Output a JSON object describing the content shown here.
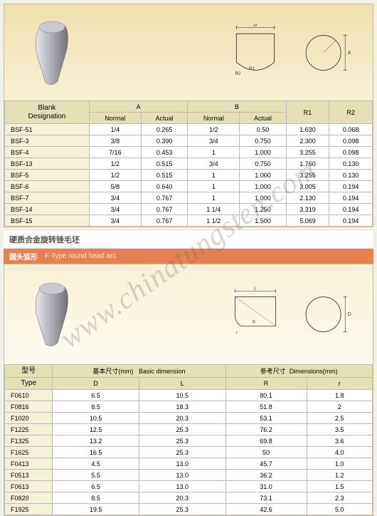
{
  "watermark": "www.chinatungsten.com",
  "table1": {
    "headers": {
      "blank": "Blank\nDesignation",
      "a": "A",
      "b": "B",
      "r1": "R1",
      "r2": "R2",
      "normal": "Normal",
      "actual": "Actual"
    },
    "rows": [
      [
        "BSF-51",
        "1/4",
        "0.265",
        "1/2",
        "0.50",
        "1.630",
        "0.068"
      ],
      [
        "BSF-3",
        "3/8",
        "0.390",
        "3/4",
        "0.750",
        "2.300",
        "0.098"
      ],
      [
        "BSF-4",
        "7/16",
        "0.453",
        "1",
        "1.000",
        "3.255",
        "0.098"
      ],
      [
        "BSF-13",
        "1/2",
        "0.515",
        "3/4",
        "0.750",
        "1.760",
        "0.130"
      ],
      [
        "BSF-5",
        "1/2",
        "0.515",
        "1",
        "1.000",
        "3.255",
        "0.130"
      ],
      [
        "BSF-6",
        "5/8",
        "0.640",
        "1",
        "1.000",
        "3.005",
        "0.194"
      ],
      [
        "BSF-7",
        "3/4",
        "0.767",
        "1",
        "1.000",
        "2.130",
        "0.194"
      ],
      [
        "BSF-14",
        "3/4",
        "0.767",
        "1 1/4",
        "1.250",
        "3.319",
        "0.194"
      ],
      [
        "BSF-15",
        "3/4",
        "0.767",
        "1 1/2",
        "1.500",
        "5.069",
        "0.194"
      ]
    ],
    "diagram_labels": {
      "b": "B",
      "a": "A",
      "r1": "R1",
      "r2": "R2"
    }
  },
  "section2": {
    "title": "硬质合金旋转锉毛坯",
    "subtitle_cn": "圆头弧形",
    "subtitle_en": "F Type round head arc"
  },
  "table2": {
    "headers": {
      "type_cn": "型号",
      "type_en": "Type",
      "basic_cn": "基本尺寸(mm)",
      "basic_en": "Basic dimension",
      "ref_cn": "参考尺寸",
      "ref_en": "Dimensions(mm)",
      "d": "D",
      "l": "L",
      "r_big": "R",
      "r_small": "r"
    },
    "rows": [
      [
        "F0610",
        "6.5",
        "10.5",
        "80.1",
        "1.8"
      ],
      [
        "F0816",
        "8.5",
        "18.3",
        "51.8",
        "2"
      ],
      [
        "F1020",
        "10.5",
        "20.3",
        "53.1",
        "2.5"
      ],
      [
        "F1225",
        "12.5",
        "25.3",
        "76.2",
        "3.5"
      ],
      [
        "F1325",
        "13.2",
        "25.3",
        "69.8",
        "3.6"
      ],
      [
        "F1625",
        "16.5",
        "25.3",
        "50",
        "4.0"
      ],
      [
        "F0413",
        "4.5",
        "13.0",
        "45.7",
        "1.0"
      ],
      [
        "F0513",
        "5.5",
        "13.0",
        "36.2",
        "1.2"
      ],
      [
        "F0613",
        "6.5",
        "13.0",
        "31.0",
        "1.5"
      ],
      [
        "F0820",
        "8.5",
        "20.3",
        "73.1",
        "2.3"
      ],
      [
        "F1925",
        "19.5",
        "25.3",
        "42.6",
        "5.0"
      ]
    ],
    "diagram_labels": {
      "l": "L",
      "d": "D",
      "r": "r",
      "r_big": "R"
    }
  },
  "colors": {
    "diagram_bg_top": "#f0e0b0",
    "diagram_bg_bottom": "#f8f0d5",
    "header_bg": "#e6e0b8",
    "border": "#bbb",
    "subtitle_bar": "#e88050",
    "shape_light": "#d8d8dc",
    "shape_dark": "#888890"
  }
}
